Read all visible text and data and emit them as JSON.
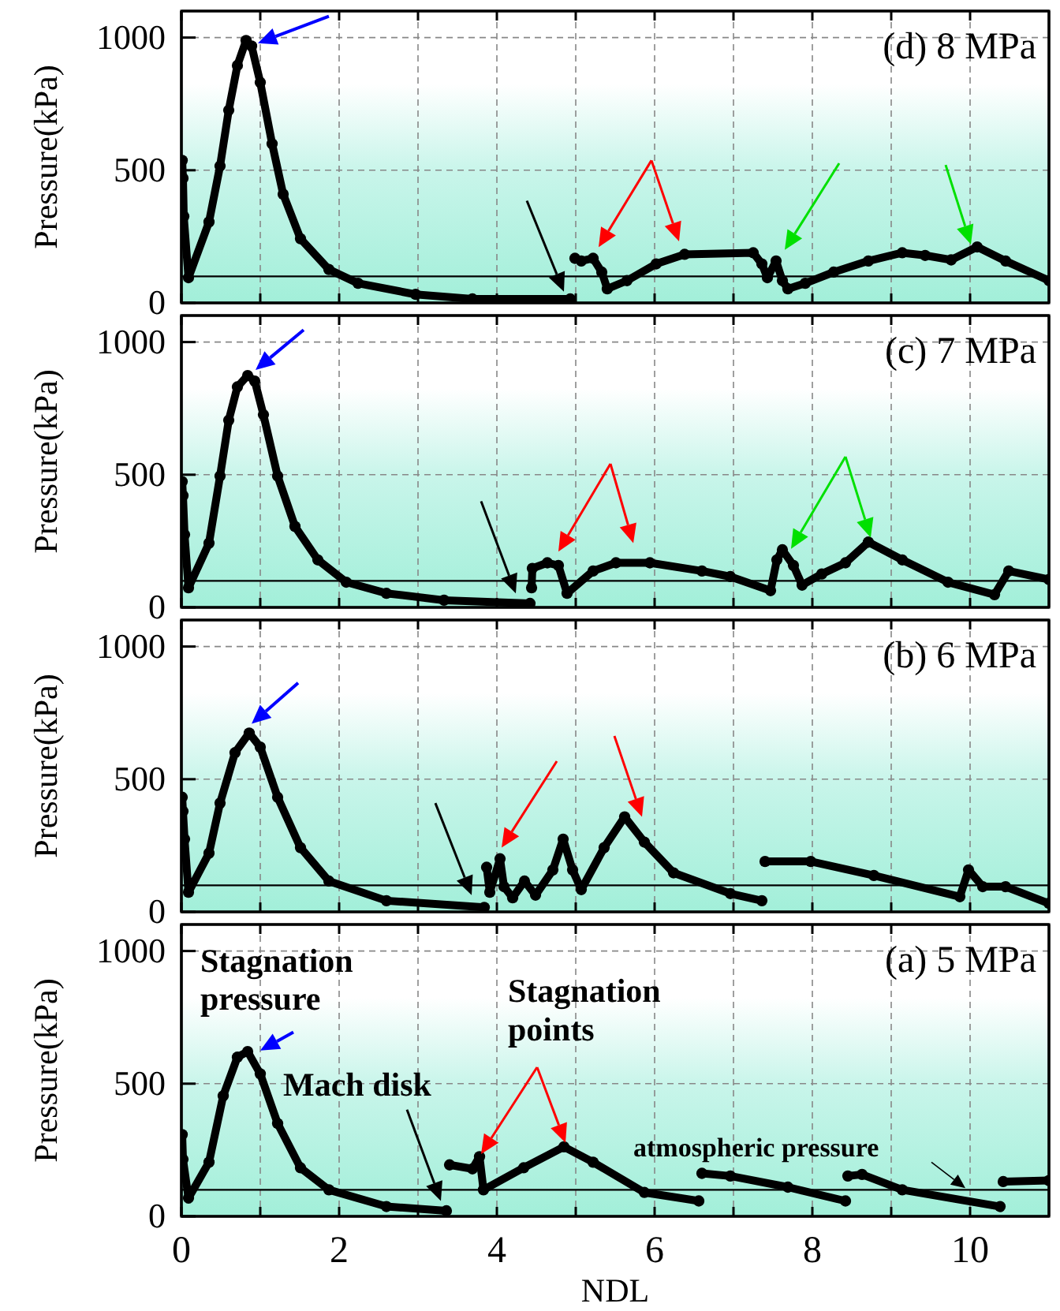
{
  "chart_data": [
    {
      "type": "line",
      "title": "(d) 8 MPa",
      "ylabel": "Pressure(kPa)",
      "xlim": [
        0,
        11
      ],
      "ylim": [
        0,
        1100
      ],
      "tick_labels": "y",
      "grid": true,
      "marker": "circle",
      "xticks": [
        0,
        {
          "value": 1,
          "label": null
        },
        2,
        {
          "value": 3,
          "label": null
        },
        4,
        {
          "value": 5,
          "label": null
        },
        6,
        {
          "value": 7,
          "label": null
        },
        8,
        {
          "value": 9,
          "label": null
        },
        10
      ],
      "yticks": [
        0,
        500,
        1000
      ],
      "ref_lines": [
        {
          "axis": "y",
          "value": 100,
          "color": "#000000"
        }
      ],
      "series": [
        {
          "color": "#000000",
          "x": [
            0.01,
            0.02,
            0.03,
            0.09,
            0.35,
            0.49,
            0.6,
            0.71,
            0.82,
            0.89,
            1.0,
            1.15,
            1.29,
            1.51,
            1.87,
            2.24,
            2.97,
            3.69,
            4.93,
            4.96,
            4.99,
            5.07,
            5.22,
            5.33,
            5.4,
            5.65,
            6.02,
            6.38,
            7.25,
            7.36,
            7.43,
            7.54,
            7.62,
            7.69,
            7.91,
            8.27,
            8.71,
            9.14,
            9.43,
            9.76,
            10.09,
            10.45,
            11.0
          ],
          "values": [
            537,
            470,
            326,
            95,
            305,
            516,
            726,
            895,
            989,
            968,
            831,
            600,
            410,
            242,
            126,
            74,
            32,
            15,
            15,
            null,
            168,
            158,
            168,
            116,
            53,
            84,
            147,
            183,
            189,
            147,
            95,
            158,
            84,
            53,
            74,
            116,
            158,
            189,
            179,
            162,
            211,
            158,
            84
          ]
        }
      ]
    },
    {
      "type": "line",
      "title": "(c) 7 MPa",
      "ylabel": "Pressure(kPa)",
      "xlim": [
        0,
        11
      ],
      "ylim": [
        0,
        1100
      ],
      "tick_labels": "y",
      "grid": true,
      "marker": "circle",
      "xticks": [
        0,
        {
          "value": 1,
          "label": null
        },
        2,
        {
          "value": 3,
          "label": null
        },
        4,
        {
          "value": 5,
          "label": null
        },
        6,
        {
          "value": 7,
          "label": null
        },
        8,
        {
          "value": 9,
          "label": null
        },
        10
      ],
      "yticks": [
        0,
        500,
        1000
      ],
      "ref_lines": [
        {
          "axis": "y",
          "value": 100,
          "color": "#000000"
        }
      ],
      "series": [
        {
          "color": "#000000",
          "x": [
            0.01,
            0.02,
            0.04,
            0.09,
            0.35,
            0.49,
            0.6,
            0.71,
            0.84,
            0.93,
            1.04,
            1.22,
            1.44,
            1.73,
            2.09,
            2.6,
            3.33,
            4.42,
            4.43,
            4.44,
            4.45,
            4.64,
            4.78,
            4.89,
            5.22,
            5.51,
            5.94,
            6.6,
            6.96,
            7.47,
            7.55,
            7.62,
            7.76,
            7.87,
            8.12,
            8.42,
            8.71,
            9.14,
            9.72,
            10.31,
            10.49,
            11.0
          ],
          "values": [
            474,
            421,
            274,
            74,
            242,
            495,
            705,
            831,
            874,
            853,
            726,
            495,
            305,
            179,
            95,
            53,
            27,
            15,
            null,
            74,
            147,
            168,
            158,
            53,
            137,
            168,
            168,
            137,
            116,
            63,
            179,
            217,
            158,
            84,
            126,
            168,
            246,
            179,
            95,
            48,
            137,
            105
          ]
        }
      ]
    },
    {
      "type": "line",
      "title": "(b) 6 MPa",
      "ylabel": "Pressure(kPa)",
      "xlim": [
        0,
        11
      ],
      "ylim": [
        0,
        1100
      ],
      "tick_labels": "y",
      "grid": true,
      "marker": "circle",
      "xticks": [
        0,
        {
          "value": 1,
          "label": null
        },
        2,
        {
          "value": 3,
          "label": null
        },
        4,
        {
          "value": 5,
          "label": null
        },
        6,
        {
          "value": 7,
          "label": null
        },
        8,
        {
          "value": 9,
          "label": null
        },
        10
      ],
      "yticks": [
        0,
        500,
        1000
      ],
      "ref_lines": [
        {
          "axis": "y",
          "value": 100,
          "color": "#000000"
        }
      ],
      "series": [
        {
          "color": "#000000",
          "x": [
            0.01,
            0.02,
            0.04,
            0.09,
            0.35,
            0.49,
            0.68,
            0.86,
            1.0,
            1.22,
            1.51,
            1.87,
            2.6,
            3.84,
            3.85,
            3.87,
            3.91,
            4.04,
            4.09,
            4.2,
            4.35,
            4.49,
            4.71,
            4.84,
            4.96,
            5.07,
            5.36,
            5.62,
            5.87,
            6.24,
            6.96,
            7.36,
            7.38,
            7.4,
            7.98,
            8.78,
            9.87,
            9.98,
            10.16,
            10.45,
            11.0
          ],
          "values": [
            432,
            379,
            274,
            74,
            221,
            410,
            600,
            674,
            621,
            432,
            242,
            116,
            42,
            17,
            null,
            168,
            74,
            200,
            95,
            53,
            116,
            63,
            158,
            274,
            158,
            84,
            242,
            358,
            263,
            147,
            69,
            42,
            null,
            190,
            190,
            137,
            57,
            158,
            95,
            95,
            32
          ]
        }
      ]
    },
    {
      "type": "line",
      "title": "(a) 5 MPa",
      "xlabel": "NDL",
      "ylabel": "Pressure(kPa)",
      "xlim": [
        0,
        11
      ],
      "ylim": [
        0,
        1100
      ],
      "grid": true,
      "marker": "circle",
      "xticks": [
        0,
        {
          "value": 1,
          "label": null
        },
        2,
        {
          "value": 3,
          "label": null
        },
        4,
        {
          "value": 5,
          "label": null
        },
        6,
        {
          "value": 7,
          "label": null
        },
        8,
        {
          "value": 9,
          "label": null
        },
        10
      ],
      "yticks": [
        0,
        500,
        1000
      ],
      "ref_lines": [
        {
          "axis": "y",
          "value": 100,
          "color": "#000000"
        }
      ],
      "annotations": [
        "Stagnation pressure",
        "Mach disk",
        "Stagnation points",
        "atmospheric pressure"
      ],
      "series": [
        {
          "color": "#000000",
          "x": [
            0.01,
            0.02,
            0.09,
            0.35,
            0.53,
            0.71,
            0.84,
            1.0,
            1.22,
            1.51,
            1.87,
            2.6,
            3.36,
            3.38,
            3.4,
            3.69,
            3.78,
            3.83,
            4.34,
            4.85,
            5.22,
            5.87,
            6.56,
            6.58,
            6.6,
            6.96,
            7.69,
            8.42,
            8.44,
            8.45,
            8.63,
            9.14,
            10.38,
            10.4,
            10.42,
            11.0
          ],
          "values": [
            308,
            215,
            69,
            204,
            454,
            600,
            621,
            537,
            350,
            183,
            100,
            37,
            21,
            null,
            194,
            179,
            225,
            100,
            183,
            262,
            204,
            90,
            58,
            null,
            162,
            152,
            110,
            58,
            null,
            152,
            158,
            100,
            37,
            null,
            131,
            135
          ]
        }
      ]
    }
  ]
}
